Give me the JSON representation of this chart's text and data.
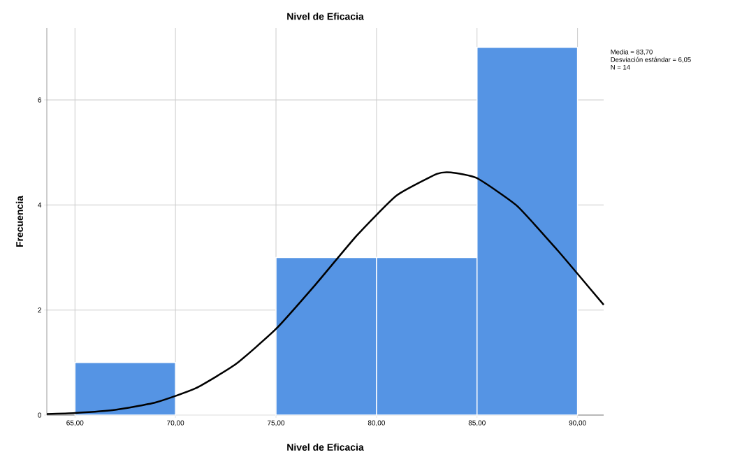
{
  "chart_data": {
    "type": "histogram",
    "title": "Nivel de Eficacia",
    "xlabel": "Nivel de Eficacia",
    "ylabel": "Frecuencia",
    "bins": [
      65,
      70,
      75,
      80,
      85,
      90
    ],
    "values": [
      1,
      0,
      3,
      3,
      7
    ],
    "color": "#5594e4",
    "series": [
      {
        "type": "line",
        "color": "#000000",
        "x": [
          63.6,
          65,
          67,
          69,
          71,
          73,
          75,
          77,
          79,
          81,
          83,
          83.7,
          85,
          87,
          89,
          90,
          91.3
        ],
        "values": [
          0.02,
          0.04,
          0.1,
          0.24,
          0.51,
          0.97,
          1.64,
          2.5,
          3.41,
          4.18,
          4.59,
          4.62,
          4.51,
          3.98,
          3.14,
          2.69,
          2.1
        ]
      }
    ],
    "xlim": [
      63.6,
      91.3
    ],
    "ylim": [
      0,
      7.37
    ],
    "xticks": [
      {
        "value": 65,
        "label": "65,00"
      },
      {
        "value": 70,
        "label": "70,00"
      },
      {
        "value": 75,
        "label": "75,00"
      },
      {
        "value": 80,
        "label": "80,00"
      },
      {
        "value": 85,
        "label": "85,00"
      },
      {
        "value": 90,
        "label": "90,00"
      }
    ],
    "yticks": [
      0,
      2,
      4,
      6
    ],
    "grid": true,
    "annotations": [
      "Media = 83,70",
      "Desviación estándar = 6,05",
      "N = 14"
    ]
  }
}
